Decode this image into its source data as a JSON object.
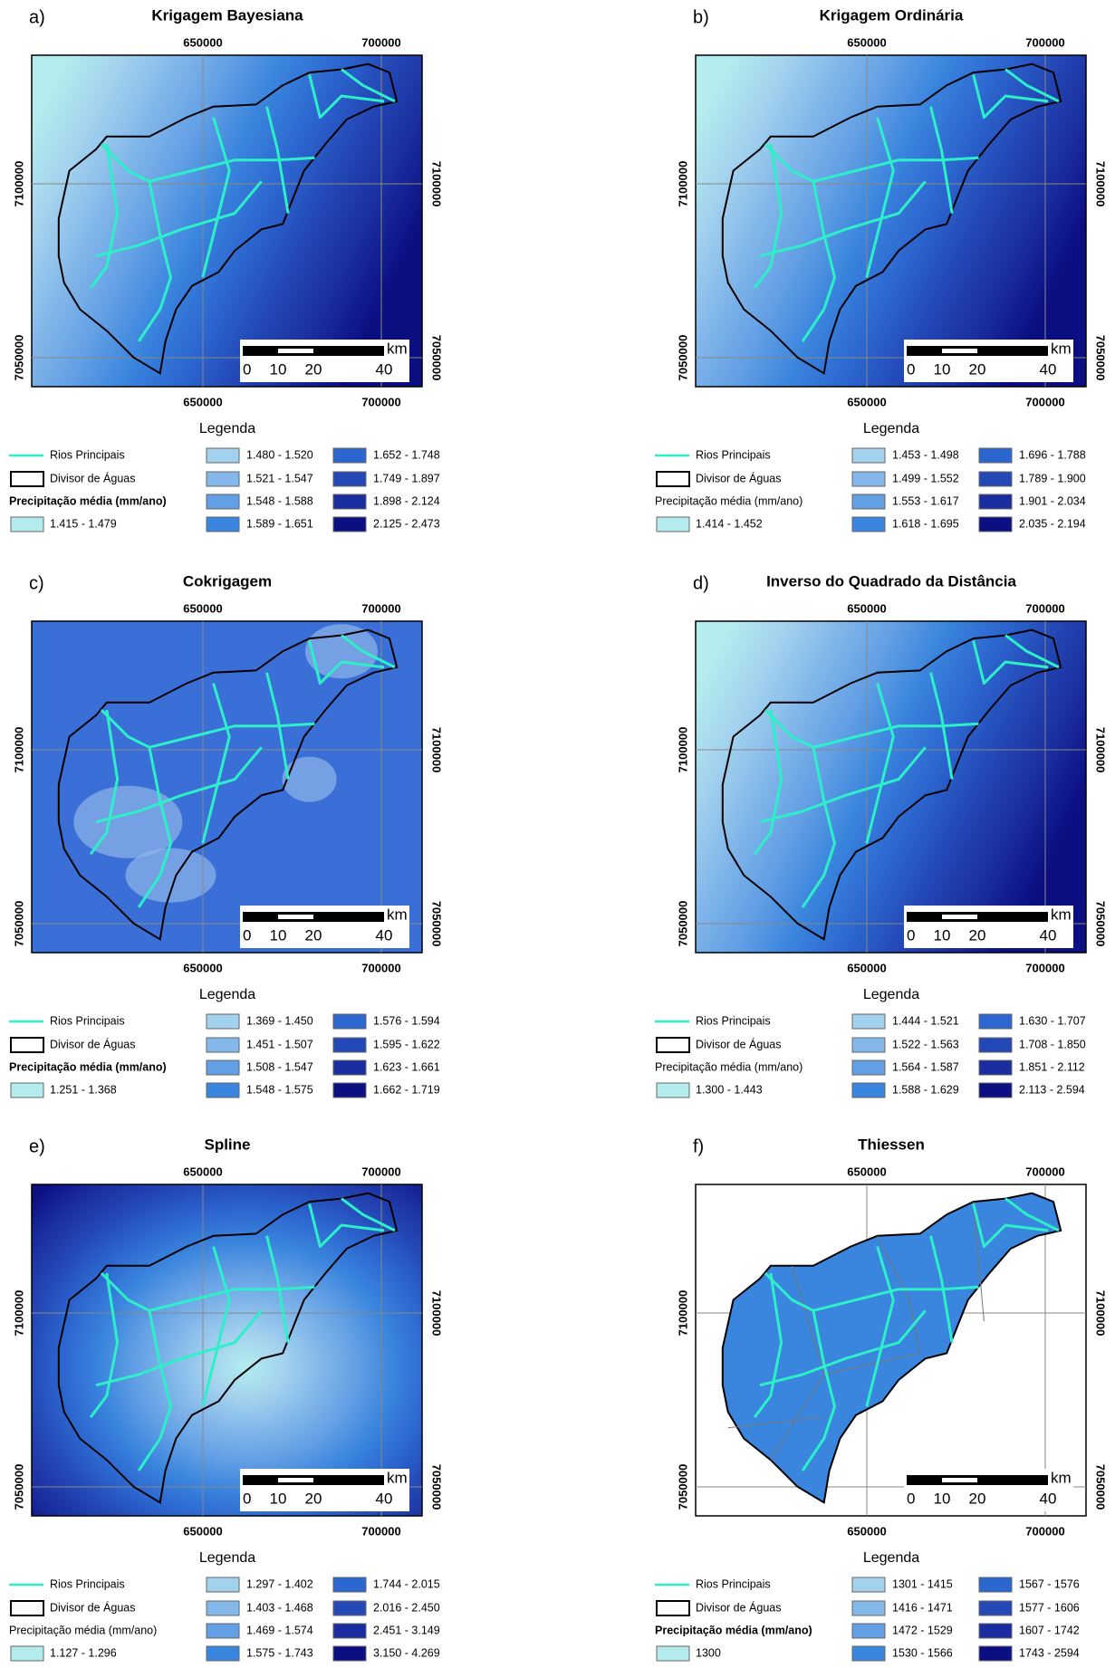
{
  "class_colors": [
    "#b4ecee",
    "#a3d2ee",
    "#84b8ea",
    "#629fe4",
    "#3a85de",
    "#2c66cf",
    "#2448b6",
    "#1a2d9e",
    "#0b0f82"
  ],
  "panels": [
    {
      "letter": "a)",
      "title": "Krigagem Bayesiana",
      "x_ticks": [
        650000,
        700000
      ],
      "y_ticks": [
        7100000,
        7050000
      ],
      "scale": {
        "unit": "km",
        "labels": [
          "0",
          "10",
          "20",
          "40"
        ]
      },
      "legend": {
        "title": "Legenda",
        "rivers": "Rios Principais",
        "divide": "Divisor de Águas",
        "precip_title": "Precipitação média (mm/ano)",
        "precip_title_bold": true,
        "classes": [
          "1.415 - 1.479",
          "1.480 - 1.520",
          "1.521 - 1.547",
          "1.548 - 1.588",
          "1.589 - 1.651",
          "1.652 - 1.748",
          "1.749 - 1.897",
          "1.898 - 2.124",
          "2.125 - 2.473"
        ]
      }
    },
    {
      "letter": "b)",
      "title": "Krigagem Ordinária",
      "x_ticks": [
        650000,
        700000
      ],
      "y_ticks": [
        7100000,
        7050000
      ],
      "scale": {
        "unit": "km",
        "labels": [
          "0",
          "10",
          "20",
          "40"
        ]
      },
      "legend": {
        "title": "Legenda",
        "rivers": "Rios Principais",
        "divide": "Divisor de Águas",
        "precip_title": "Precipitação média (mm/ano)",
        "precip_title_bold": false,
        "classes": [
          "1.414 - 1.452",
          "1.453 - 1.498",
          "1.499 - 1.552",
          "1.553 - 1.617",
          "1.618 - 1.695",
          "1.696 - 1.788",
          "1.789 - 1.900",
          "1.901 - 2.034",
          "2.035 - 2.194"
        ]
      }
    },
    {
      "letter": "c)",
      "title": "Cokrigagem",
      "x_ticks": [
        650000,
        700000
      ],
      "y_ticks": [
        7100000,
        7050000
      ],
      "scale": {
        "unit": "km",
        "labels": [
          "0",
          "10",
          "20",
          "40"
        ]
      },
      "legend": {
        "title": "Legenda",
        "rivers": "Rios Principais",
        "divide": "Divisor de Águas",
        "precip_title": "Precipitação média (mm/ano)",
        "precip_title_bold": true,
        "classes": [
          "1.251 - 1.368",
          "1.369 - 1.450",
          "1.451 - 1.507",
          "1.508 - 1.547",
          "1.548 - 1.575",
          "1.576 - 1.594",
          "1.595 - 1.622",
          "1.623 - 1.661",
          "1.662 - 1.719"
        ]
      }
    },
    {
      "letter": "d)",
      "title": "Inverso do Quadrado da Distância",
      "x_ticks": [
        650000,
        700000
      ],
      "y_ticks": [
        7100000,
        7050000
      ],
      "scale": {
        "unit": "km",
        "labels": [
          "0",
          "10",
          "20",
          "40"
        ]
      },
      "legend": {
        "title": "Legenda",
        "rivers": "Rios Principais",
        "divide": "Divisor de Águas",
        "precip_title": "Precipitação média (mm/ano)",
        "precip_title_bold": false,
        "classes": [
          "1.300 - 1.443",
          "1.444 - 1.521",
          "1.522 - 1.563",
          "1.564 - 1.587",
          "1.588 - 1.629",
          "1.630 - 1.707",
          "1.708 - 1.850",
          "1.851 - 2.112",
          "2.113 - 2.594"
        ]
      }
    },
    {
      "letter": "e)",
      "title": "Spline",
      "x_ticks": [
        650000,
        700000
      ],
      "y_ticks": [
        7100000,
        7050000
      ],
      "scale": {
        "unit": "km",
        "labels": [
          "0",
          "10",
          "20",
          "40"
        ]
      },
      "legend": {
        "title": "Legenda",
        "rivers": "Rios Principais",
        "divide": "Divisor de Águas",
        "precip_title": "Precipitação média (mm/ano)",
        "precip_title_bold": false,
        "classes": [
          "1.127 - 1.296",
          "1.297 - 1.402",
          "1.403 - 1.468",
          "1.469 - 1.574",
          "1.575 - 1.743",
          "1.744 - 2.015",
          "2.016 - 2.450",
          "2.451 - 3.149",
          "3.150 - 4.269"
        ]
      }
    },
    {
      "letter": "f)",
      "title": "Thiessen",
      "x_ticks": [
        650000,
        700000
      ],
      "y_ticks": [
        7100000,
        7050000
      ],
      "scale": {
        "unit": "km",
        "labels": [
          "0",
          "10",
          "20",
          "40"
        ]
      },
      "legend": {
        "title": "Legenda",
        "rivers": "Rios Principais",
        "divide": "Divisor de Águas",
        "precip_title": "Precipitação média (mm/ano)",
        "precip_title_bold": true,
        "classes": [
          "1300",
          "1301 - 1415",
          "1416 - 1471",
          "1472 - 1529",
          "1530 - 1566",
          "1567 - 1576",
          "1577 - 1606",
          "1607 - 1742",
          "1743 - 2594"
        ]
      }
    }
  ]
}
